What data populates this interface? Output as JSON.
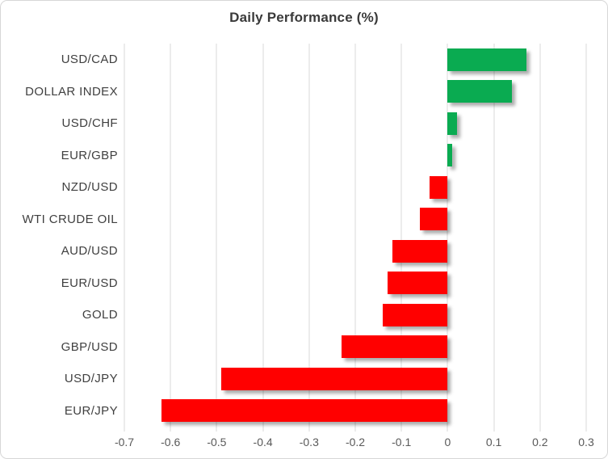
{
  "chart_data": {
    "type": "bar",
    "orientation": "horizontal",
    "title": "Daily Performance (%)",
    "categories": [
      "USD/CAD",
      "DOLLAR INDEX",
      "USD/CHF",
      "EUR/GBP",
      "NZD/USD",
      "WTI CRUDE OIL",
      "AUD/USD",
      "EUR/USD",
      "GOLD",
      "GBP/USD",
      "USD/JPY",
      "EUR/JPY"
    ],
    "values": [
      0.17,
      0.14,
      0.02,
      0.01,
      -0.04,
      -0.06,
      -0.12,
      -0.13,
      -0.14,
      -0.23,
      -0.49,
      -0.62
    ],
    "xlabel": "",
    "ylabel": "",
    "xlim": [
      -0.7,
      0.3
    ],
    "xticks": [
      -0.7,
      -0.6,
      -0.5,
      -0.4,
      -0.3,
      -0.2,
      -0.1,
      0,
      0.1,
      0.2,
      0.3
    ],
    "xtick_labels": [
      "-0.7",
      "-0.6",
      "-0.5",
      "-0.4",
      "-0.3",
      "-0.2",
      "-0.1",
      "0",
      "0.1",
      "0.2",
      "0.3"
    ],
    "grid": "vertical",
    "legend": "none",
    "colors": {
      "positive": "#0aab51",
      "negative": "#ff0000",
      "gridline": "#d9d9d9",
      "tick_text": "#595959",
      "category_text": "#404040",
      "title_text": "#3a3a3a"
    }
  }
}
